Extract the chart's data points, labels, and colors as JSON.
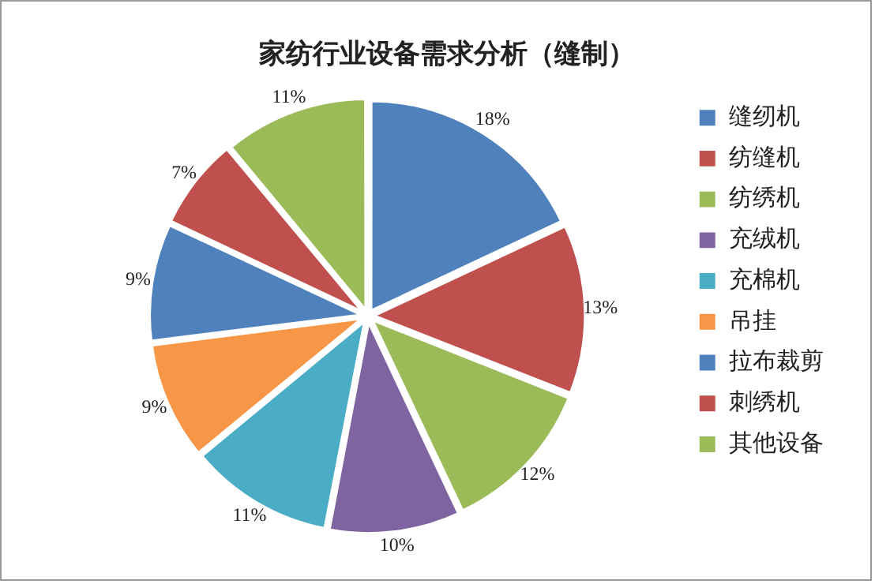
{
  "chart_data": {
    "type": "pie",
    "title": "家纺行业设备需求分析（缝制）",
    "categories": [
      "缝纫机",
      "纺缝机",
      "纺绣机",
      "充绒机",
      "充棉机",
      "吊挂",
      "拉布裁剪",
      "刺绣机",
      "其他设备"
    ],
    "values": [
      18,
      13,
      12,
      10,
      11,
      9,
      9,
      7,
      11
    ],
    "colors": [
      "#4f81bd",
      "#c0504d",
      "#9bbb59",
      "#8064a2",
      "#4bacc6",
      "#f79646",
      "#4f81bd",
      "#c0504d",
      "#9bbb59"
    ],
    "value_labels": [
      "18%",
      "13%",
      "12%",
      "10%",
      "11%",
      "9%",
      "9%",
      "7%",
      "11%"
    ],
    "legend": "right"
  }
}
